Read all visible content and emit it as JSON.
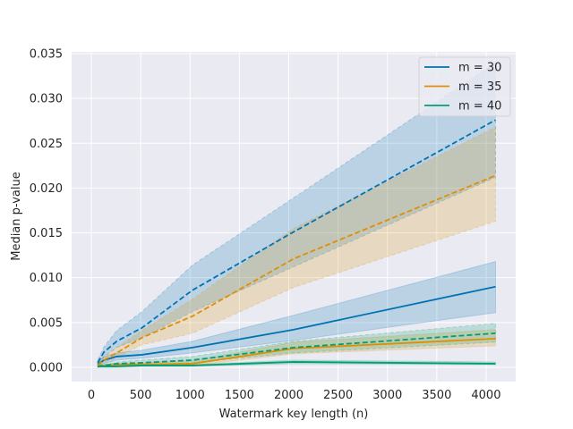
{
  "chart_data": {
    "type": "line",
    "title": "",
    "xlabel": "Watermark key length (n)",
    "ylabel": "Median p-value",
    "xlim": [
      -200,
      4300
    ],
    "ylim": [
      -0.0016,
      0.0352
    ],
    "xticks": [
      0,
      500,
      1000,
      1500,
      2000,
      2500,
      3000,
      3500,
      4000
    ],
    "yticks": [
      0.0,
      0.005,
      0.01,
      0.015,
      0.02,
      0.025,
      0.03,
      0.035
    ],
    "xtick_labels": [
      "0",
      "500",
      "1000",
      "1500",
      "2000",
      "2500",
      "3000",
      "3500",
      "4000"
    ],
    "ytick_labels": [
      "0.000",
      "0.005",
      "0.010",
      "0.015",
      "0.020",
      "0.025",
      "0.030",
      "0.035"
    ],
    "grid": true,
    "legend_position": "top-right",
    "x": [
      64,
      128,
      256,
      512,
      1024,
      2048,
      4096
    ],
    "series": [
      {
        "name": "m = 30",
        "color": "#0173b2",
        "solid": [
          0.0003,
          0.0008,
          0.0012,
          0.0014,
          0.0022,
          0.0042,
          0.009
        ],
        "solid_lower": [
          0.0001,
          0.0004,
          0.0008,
          0.001,
          0.0016,
          0.003,
          0.0061
        ],
        "solid_upper": [
          0.0005,
          0.0012,
          0.0016,
          0.0019,
          0.0029,
          0.0058,
          0.0118
        ],
        "dashed": [
          0.0005,
          0.0017,
          0.0029,
          0.0044,
          0.0086,
          0.0151,
          0.0276
        ],
        "dashed_lower": [
          0.0003,
          0.0012,
          0.0022,
          0.0033,
          0.0062,
          0.0112,
          0.0212
        ],
        "dashed_upper": [
          0.0008,
          0.0023,
          0.0041,
          0.0062,
          0.0114,
          0.0189,
          0.034
        ]
      },
      {
        "name": "m = 35",
        "color": "#de8f05",
        "solid": [
          0.0001,
          0.0002,
          0.0003,
          0.0003,
          0.0004,
          0.0021,
          0.0032
        ],
        "solid_lower": [
          0.0,
          0.0001,
          0.0001,
          0.0002,
          0.0002,
          0.0015,
          0.0024
        ],
        "solid_upper": [
          0.0002,
          0.0003,
          0.0004,
          0.0005,
          0.0007,
          0.0028,
          0.0042
        ],
        "dashed": [
          0.0002,
          0.0008,
          0.0016,
          0.0033,
          0.0057,
          0.0121,
          0.0214
        ],
        "dashed_lower": [
          0.0001,
          0.0005,
          0.0011,
          0.0025,
          0.0038,
          0.0089,
          0.0163
        ],
        "dashed_upper": [
          0.0004,
          0.0012,
          0.0022,
          0.0041,
          0.0076,
          0.0155,
          0.0268
        ]
      },
      {
        "name": "m = 40",
        "color": "#029e73",
        "solid": [
          0.0001,
          0.0001,
          0.0001,
          0.0002,
          0.0002,
          0.0006,
          0.0004
        ],
        "solid_lower": [
          0.0,
          0.0,
          0.0,
          0.0001,
          0.0001,
          0.0004,
          0.0003
        ],
        "solid_upper": [
          0.0001,
          0.0002,
          0.0002,
          0.0003,
          0.0003,
          0.0008,
          0.0006
        ],
        "dashed": [
          0.0001,
          0.0002,
          0.0004,
          0.0005,
          0.0008,
          0.0022,
          0.0038
        ],
        "dashed_lower": [
          0.0,
          0.0001,
          0.0002,
          0.0003,
          0.0005,
          0.0016,
          0.0028
        ],
        "dashed_upper": [
          0.0002,
          0.0003,
          0.0006,
          0.0008,
          0.0012,
          0.0029,
          0.0049
        ]
      }
    ]
  },
  "colors": {
    "panel_background": "#eaeaf2",
    "grid": "#ffffff",
    "text": "#262626"
  }
}
